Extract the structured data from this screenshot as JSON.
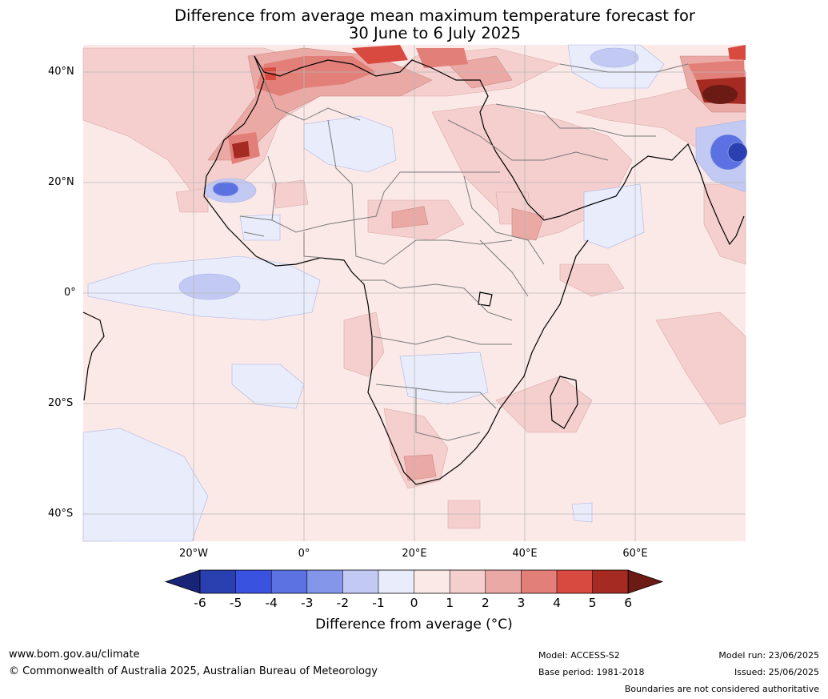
{
  "title_line1": "Difference from average mean maximum temperature forecast for",
  "title_line2": "30 June to 6 July 2025",
  "lat_labels": [
    "40°N",
    "20°N",
    "0°",
    "20°S",
    "40°S"
  ],
  "lon_labels": [
    "20°W",
    "0°",
    "20°E",
    "40°E",
    "60°E"
  ],
  "colorbar": {
    "ticks": [
      "-6",
      "-5",
      "-4",
      "-3",
      "-2",
      "-1",
      "0",
      "1",
      "2",
      "3",
      "4",
      "5",
      "6"
    ],
    "colors": [
      "#182477",
      "#2a3fb0",
      "#3a52e0",
      "#5c72e2",
      "#8496e9",
      "#c2c9f3",
      "#e9ecfb",
      "#fbe9e8",
      "#f4cfcd",
      "#eba9a5",
      "#e27f78",
      "#d84a40",
      "#a42a22",
      "#6b1a14"
    ],
    "label": "Difference from average (°C)"
  },
  "footer": {
    "website": "www.bom.gov.au/climate",
    "copyright": "© Commonwealth of Australia 2025, Australian Bureau of Meteorology",
    "model": "Model: ACCESS-S2",
    "base_period": "Base period: 1981-2018",
    "model_run": "Model run: 23/06/2025",
    "issued": "Issued: 25/06/2025",
    "disclaimer": "Boundaries are not considered authoritative"
  }
}
